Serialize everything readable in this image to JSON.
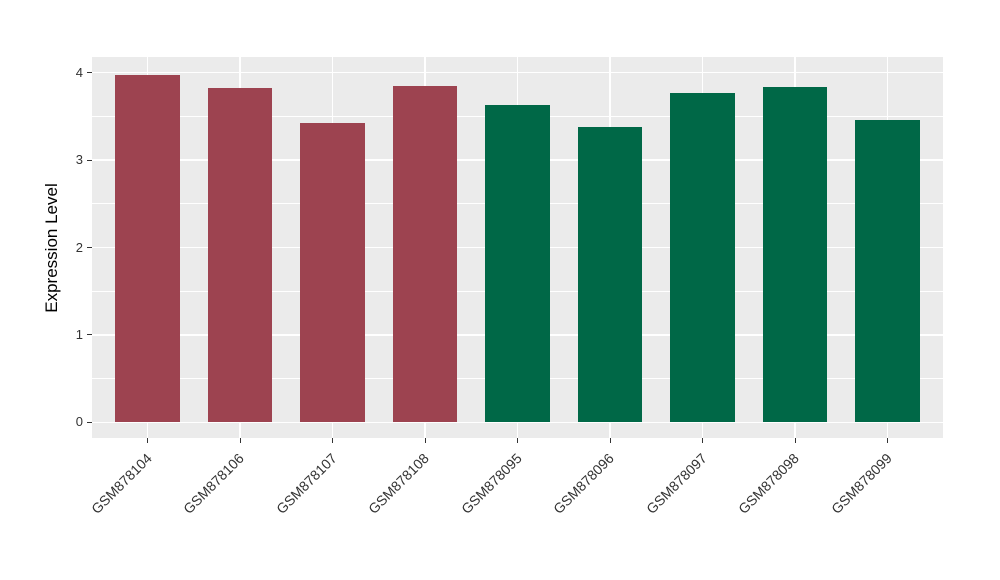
{
  "figure": {
    "background_color": "#ffffff"
  },
  "chart_data": {
    "type": "bar",
    "title": "",
    "xlabel": "",
    "ylabel": "Expression Level",
    "categories": [
      "GSM878104",
      "GSM878106",
      "GSM878107",
      "GSM878108",
      "GSM878095",
      "GSM878096",
      "GSM878097",
      "GSM878098",
      "GSM878099"
    ],
    "values": [
      3.97,
      3.83,
      3.42,
      3.85,
      3.63,
      3.38,
      3.77,
      3.84,
      3.46
    ],
    "bar_groups": [
      "red",
      "red",
      "red",
      "red",
      "green",
      "green",
      "green",
      "green",
      "green"
    ],
    "group_colors": {
      "red": "#9d4350",
      "green": "#006847"
    },
    "yticks": [
      0,
      1,
      2,
      3,
      4
    ],
    "ytick_labels": [
      "0",
      "1",
      "2",
      "3",
      "4"
    ],
    "minor_yticks": [
      0.5,
      1.5,
      2.5,
      3.5
    ],
    "ylim": [
      -0.18,
      4.18
    ],
    "bar_width_fraction": 0.7,
    "grid": "on",
    "legend": "none",
    "panel_background": "#ebebeb",
    "grid_color": "#ffffff",
    "axis_text_color": "#333333",
    "axis_title_color": "#000000",
    "tick_color": "#333333"
  }
}
